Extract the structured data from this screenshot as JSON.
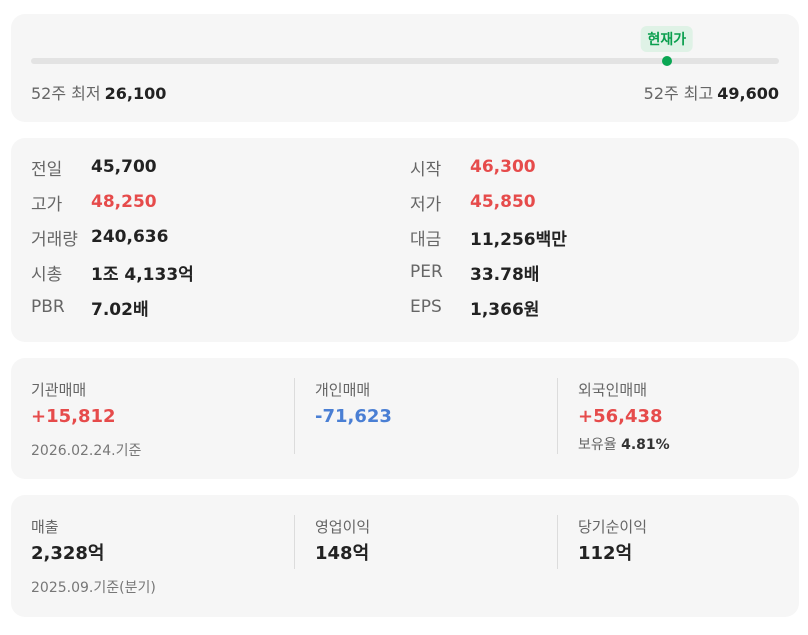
{
  "range": {
    "current_label": "현재가",
    "low_label": "52주 최저",
    "low_value": "26,100",
    "high_label": "52주 최고",
    "high_value": "49,600",
    "current_position": 0.85
  },
  "stats": [
    {
      "label": "전일",
      "value": "45,700",
      "color": "#222222"
    },
    {
      "label": "시작",
      "value": "46,300",
      "color": "#e64b4b"
    },
    {
      "label": "고가",
      "value": "48,250",
      "color": "#e64b4b"
    },
    {
      "label": "저가",
      "value": "45,850",
      "color": "#e64b4b"
    },
    {
      "label": "거래량",
      "value": "240,636",
      "color": "#222222"
    },
    {
      "label": "대금",
      "value": "11,256백만",
      "color": "#222222"
    },
    {
      "label": "시총",
      "value": "1조 4,133억",
      "color": "#222222"
    },
    {
      "label": "PER",
      "value": "33.78배",
      "color": "#222222"
    },
    {
      "label": "PBR",
      "value": "7.02배",
      "color": "#222222"
    },
    {
      "label": "EPS",
      "value": "1,366원",
      "color": "#222222"
    }
  ],
  "trading": {
    "items": [
      {
        "label": "기관매매",
        "value": "+15,812"
      },
      {
        "label": "개인매매",
        "value": "-71,623"
      },
      {
        "label": "외국인매매",
        "value": "+56,438"
      }
    ],
    "holding_label": "보유율",
    "holding_value": "4.81%",
    "date_note": "2026.02.24.기준"
  },
  "financials": {
    "items": [
      {
        "label": "매출",
        "value": "2,328억"
      },
      {
        "label": "영업이익",
        "value": "148억"
      },
      {
        "label": "당기순이익",
        "value": "112억"
      }
    ],
    "date_note": "2025.09.기준(분기)"
  },
  "colors": {
    "up": "#e64b4b",
    "down": "#4a7fd4",
    "current": "#0aa653"
  }
}
